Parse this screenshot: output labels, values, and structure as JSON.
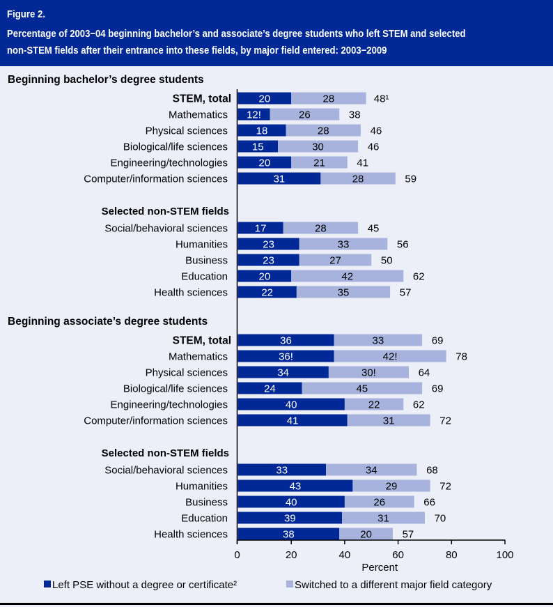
{
  "figure": {
    "label": "Figure 2.",
    "title_line1": "Percentage of 2003−04 beginning bachelor’s and associate’s degree students who left STEM and selected",
    "title_line2": "non-STEM fields after their entrance into these fields, by major field entered: 2003−2009"
  },
  "colors": {
    "header_bg": "#002896",
    "left_pse": "#002896",
    "switched": "#A7B3DD",
    "background": "#ECEEF8"
  },
  "chart_data": {
    "type": "bar",
    "orientation": "horizontal",
    "stacked": true,
    "title": "Percentage of 2003−04 beginning bachelor’s and associate’s degree students who left STEM and selected non-STEM fields after their entrance into these fields, by major field entered: 2003−2009",
    "xlabel": "Percent",
    "ylabel": "",
    "xlim": [
      0,
      100
    ],
    "xticks": [
      "0",
      "20",
      "40",
      "60",
      "80",
      "100"
    ],
    "grid": false,
    "legend_position": "bottom",
    "legend": [
      {
        "key": "left_pse",
        "label": "Left PSE without a degree or certificate²"
      },
      {
        "key": "switched",
        "label": "Switched to a different major field category"
      }
    ],
    "groups": [
      {
        "heading": "Beginning bachelor’s degree students",
        "subgroups": [
          {
            "heading": "",
            "rows": [
              {
                "label": "STEM, total",
                "bold": true,
                "left_pse": 20,
                "switched": 28,
                "left_label": "20",
                "switched_label": "28",
                "total_label": "48¹"
              },
              {
                "label": "Mathematics",
                "left_pse": 12,
                "switched": 26,
                "left_label": "12!",
                "switched_label": "26",
                "total_label": "38"
              },
              {
                "label": "Physical sciences",
                "left_pse": 18,
                "switched": 28,
                "left_label": "18",
                "switched_label": "28",
                "total_label": "46"
              },
              {
                "label": "Biological/life sciences",
                "left_pse": 15,
                "switched": 30,
                "left_label": "15",
                "switched_label": "30",
                "total_label": "46"
              },
              {
                "label": "Engineering/technologies",
                "left_pse": 20,
                "switched": 21,
                "left_label": "20",
                "switched_label": "21",
                "total_label": "41"
              },
              {
                "label": "Computer/information sciences",
                "left_pse": 31,
                "switched": 28,
                "left_label": "31",
                "switched_label": "28",
                "total_label": "59"
              }
            ]
          },
          {
            "heading": "Selected non-STEM fields",
            "rows": [
              {
                "label": "Social/behavioral sciences",
                "left_pse": 17,
                "switched": 28,
                "left_label": "17",
                "switched_label": "28",
                "total_label": "45"
              },
              {
                "label": "Humanities",
                "left_pse": 23,
                "switched": 33,
                "left_label": "23",
                "switched_label": "33",
                "total_label": "56"
              },
              {
                "label": "Business",
                "left_pse": 23,
                "switched": 27,
                "left_label": "23",
                "switched_label": "27",
                "total_label": "50"
              },
              {
                "label": "Education",
                "left_pse": 20,
                "switched": 42,
                "left_label": "20",
                "switched_label": "42",
                "total_label": "62"
              },
              {
                "label": "Health sciences",
                "left_pse": 22,
                "switched": 35,
                "left_label": "22",
                "switched_label": "35",
                "total_label": "57"
              }
            ]
          }
        ]
      },
      {
        "heading": "Beginning associate’s degree students",
        "subgroups": [
          {
            "heading": "",
            "rows": [
              {
                "label": "STEM, total",
                "bold": true,
                "left_pse": 36,
                "switched": 33,
                "left_label": "36",
                "switched_label": "33",
                "total_label": "69"
              },
              {
                "label": "Mathematics",
                "left_pse": 36,
                "switched": 42,
                "left_label": "36!",
                "switched_label": "42!",
                "total_label": "78"
              },
              {
                "label": "Physical sciences",
                "left_pse": 34,
                "switched": 30,
                "left_label": "34",
                "switched_label": "30!",
                "total_label": "64"
              },
              {
                "label": "Biological/life sciences",
                "left_pse": 24,
                "switched": 45,
                "left_label": "24",
                "switched_label": "45",
                "total_label": "69"
              },
              {
                "label": "Engineering/technologies",
                "left_pse": 40,
                "switched": 22,
                "left_label": "40",
                "switched_label": "22",
                "total_label": "62"
              },
              {
                "label": "Computer/information sciences",
                "left_pse": 41,
                "switched": 31,
                "left_label": "41",
                "switched_label": "31",
                "total_label": "72"
              }
            ]
          },
          {
            "heading": "Selected non-STEM fields",
            "rows": [
              {
                "label": "Social/behavioral sciences",
                "left_pse": 33,
                "switched": 34,
                "left_label": "33",
                "switched_label": "34",
                "total_label": "68"
              },
              {
                "label": "Humanities",
                "left_pse": 43,
                "switched": 29,
                "left_label": "43",
                "switched_label": "29",
                "total_label": "72"
              },
              {
                "label": "Business",
                "left_pse": 40,
                "switched": 26,
                "left_label": "40",
                "switched_label": "26",
                "total_label": "66"
              },
              {
                "label": "Education",
                "left_pse": 39,
                "switched": 31,
                "left_label": "39",
                "switched_label": "31",
                "total_label": "70"
              },
              {
                "label": "Health sciences",
                "left_pse": 38,
                "switched": 20,
                "left_label": "38",
                "switched_label": "20",
                "total_label": "57"
              }
            ]
          }
        ]
      }
    ]
  }
}
